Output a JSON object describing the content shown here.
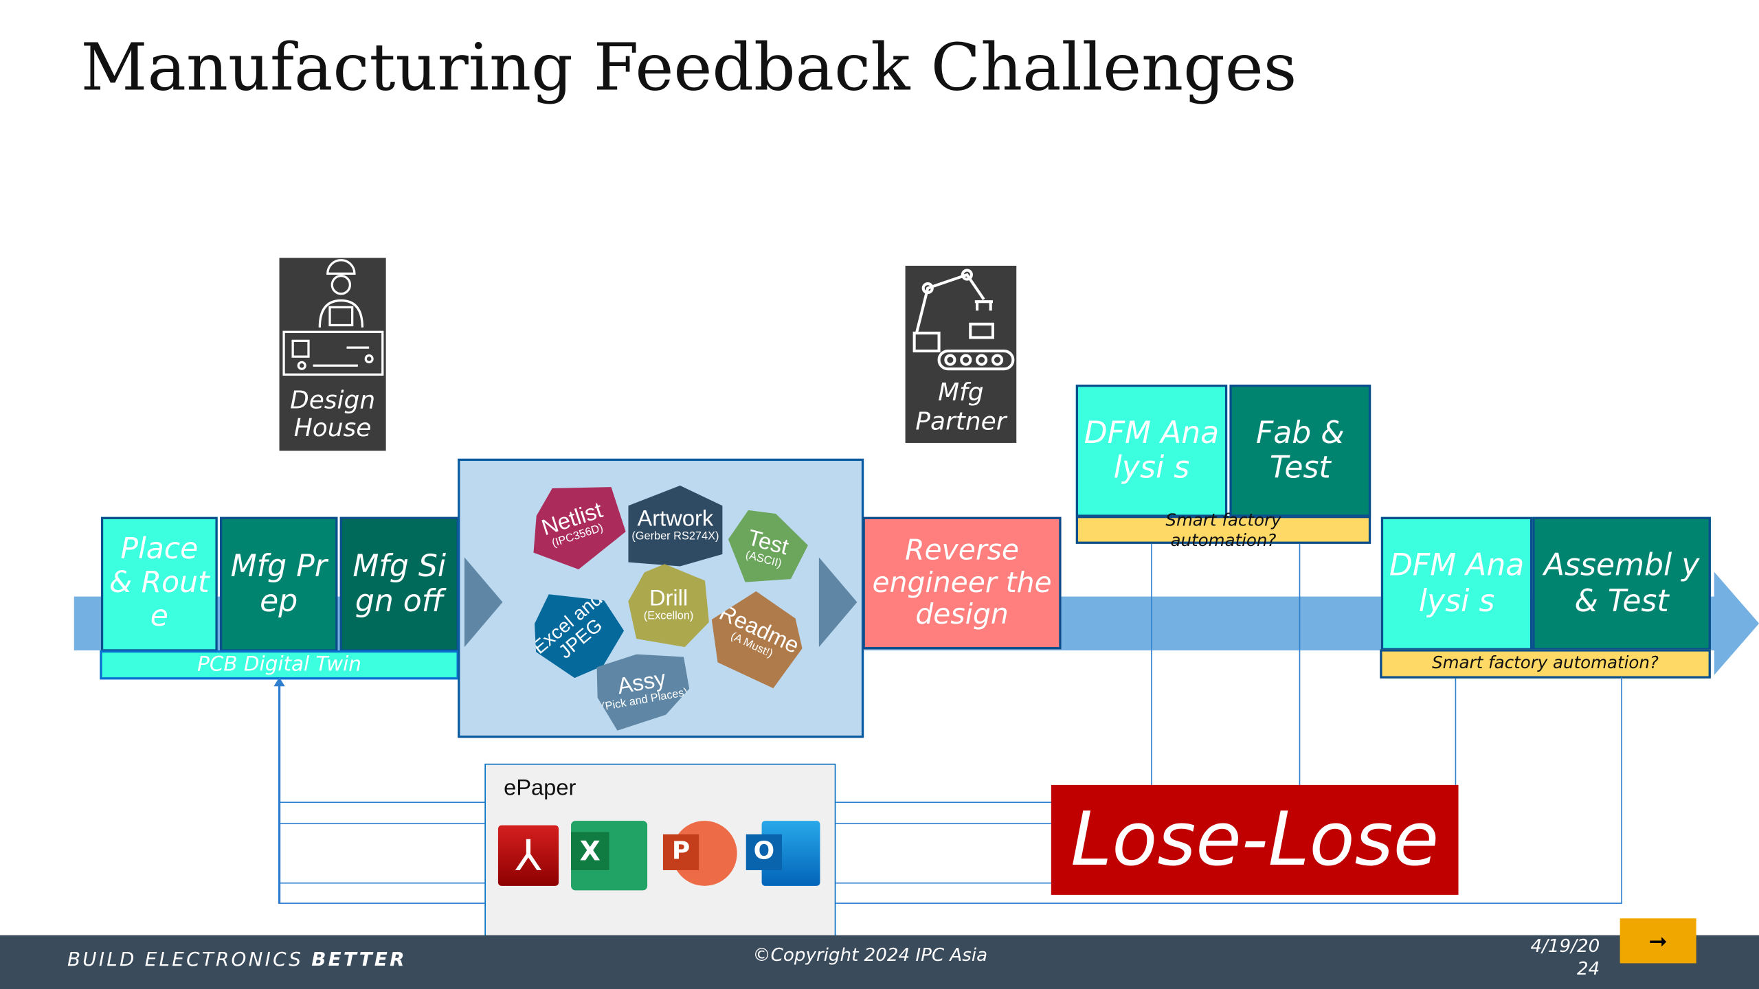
{
  "title": "Manufacturing Feedback Challenges",
  "actors": {
    "design_house": "Design House",
    "mfg_partner": "Mfg Partner"
  },
  "steps": {
    "place_route": "Place & Rout e",
    "mfg_prep": "Mfg Prep",
    "mfg_signoff": "Mfg Sign off",
    "pcb_twin": "PCB Digital Twin",
    "reverse": "Reverse engineer the design",
    "dfm1": "DFM Analysi s",
    "fab_test": "Fab & Test",
    "smart1": "Smart factory automation?",
    "dfm2": "DFM Analysi s",
    "assembly_test": "Assembl y & Test",
    "smart2": "Smart factory automation?"
  },
  "data_files": [
    {
      "name": "Netlist",
      "sub": "(IPC356D)",
      "color": "#ab2b5a"
    },
    {
      "name": "Artwork",
      "sub": "(Gerber RS274X)",
      "color": "#2f4a63"
    },
    {
      "name": "Test",
      "sub": "(ASCII)",
      "color": "#6ca55c"
    },
    {
      "name": "Excel and JPEG",
      "sub": "",
      "color": "#06699c"
    },
    {
      "name": "Drill",
      "sub": "(Excellon)",
      "color": "#aca84e"
    },
    {
      "name": "Readme",
      "sub": "(A Must!)",
      "color": "#b07b4a"
    },
    {
      "name": "Assy",
      "sub": "(Pick and Places)",
      "color": "#5f87a5"
    }
  ],
  "epaper": {
    "label": "ePaper",
    "apps": [
      "Adobe PDF",
      "Excel",
      "PowerPoint",
      "Outlook"
    ]
  },
  "verdict": "Lose-Lose",
  "footer": {
    "tagline_a": "BUILD ELECTRONICS ",
    "tagline_b": "BETTER",
    "copyright": "©Copyright 2024 IPC Asia",
    "date_a": "4/19/20",
    "date_b": "24",
    "next": "➞"
  }
}
